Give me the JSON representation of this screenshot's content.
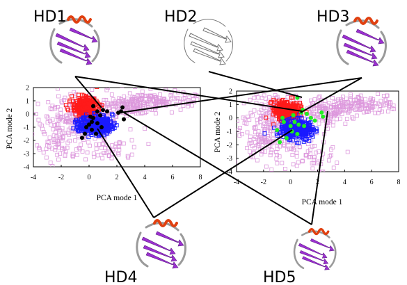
{
  "figure": {
    "structure_labels": [
      "HD1",
      "HD2",
      "HD3",
      "HD4",
      "HD5"
    ],
    "colors": {
      "cluster_red": "#ff1a1a",
      "cluster_blue": "#1a1aff",
      "background_squares": "#dd99dd",
      "panel1_points": "#000000",
      "panel2_points": "#22ee22",
      "structure_sheet": "#9b30d0",
      "structure_helix": "#e04010",
      "structure_coil": "#9a9a9a"
    }
  },
  "chart_data": [
    {
      "type": "scatter",
      "xlabel": "PCA mode 1",
      "ylabel": "PCA mode 2",
      "xlim": [
        -4,
        8
      ],
      "ylim": [
        -4,
        2
      ],
      "xticks": [
        "-4",
        "-2",
        "0",
        "2",
        "4",
        "6",
        "8"
      ],
      "yticks": [
        "2",
        "1",
        "0",
        "-1",
        "-2",
        "-3",
        "-4"
      ],
      "highlight_points": [
        [
          0.3,
          0.6
        ],
        [
          0.6,
          0.2
        ],
        [
          1.0,
          0.3
        ],
        [
          1.3,
          0.2
        ],
        [
          0.8,
          -0.1
        ],
        [
          0.2,
          -0.6
        ],
        [
          0.0,
          -0.8
        ],
        [
          0.3,
          -0.3
        ],
        [
          0.6,
          -0.7
        ],
        [
          -0.2,
          -1.0
        ],
        [
          0.2,
          -1.2
        ],
        [
          0.5,
          -1.5
        ],
        [
          -0.3,
          -1.5
        ],
        [
          -0.5,
          -1.8
        ],
        [
          2.3,
          0.2
        ],
        [
          2.4,
          0.5
        ],
        [
          2.5,
          -0.4
        ],
        [
          2.1,
          0.1
        ],
        [
          0.1,
          -0.2
        ],
        [
          0.9,
          -1.0
        ]
      ]
    },
    {
      "type": "scatter",
      "xlabel": "PCA mode 1",
      "ylabel": "PCA mode 2",
      "xlim": [
        -4,
        8
      ],
      "ylim": [
        -4,
        2
      ],
      "xticks": [
        "-4",
        "-2",
        "0",
        "2",
        "4",
        "6",
        "8"
      ],
      "yticks": [
        "2",
        "1",
        "0",
        "-1",
        "-2",
        "-3",
        "-4"
      ],
      "highlight_points": [
        [
          0.5,
          1.5
        ],
        [
          0.8,
          0.4
        ],
        [
          1.2,
          0.3
        ],
        [
          1.5,
          0.0
        ],
        [
          0.3,
          -0.3
        ],
        [
          0.0,
          -0.6
        ],
        [
          0.6,
          -0.5
        ],
        [
          -0.5,
          -0.3
        ],
        [
          -1.0,
          -0.9
        ],
        [
          0.1,
          -1.0
        ],
        [
          0.5,
          -1.2
        ],
        [
          -0.3,
          -1.5
        ],
        [
          2.3,
          0.4
        ],
        [
          2.4,
          0.1
        ],
        [
          1.0,
          -0.6
        ],
        [
          0.9,
          0.6
        ],
        [
          -0.6,
          0.0
        ],
        [
          0.2,
          0.2
        ],
        [
          1.8,
          -0.2
        ],
        [
          -0.8,
          -1.8
        ]
      ]
    }
  ]
}
